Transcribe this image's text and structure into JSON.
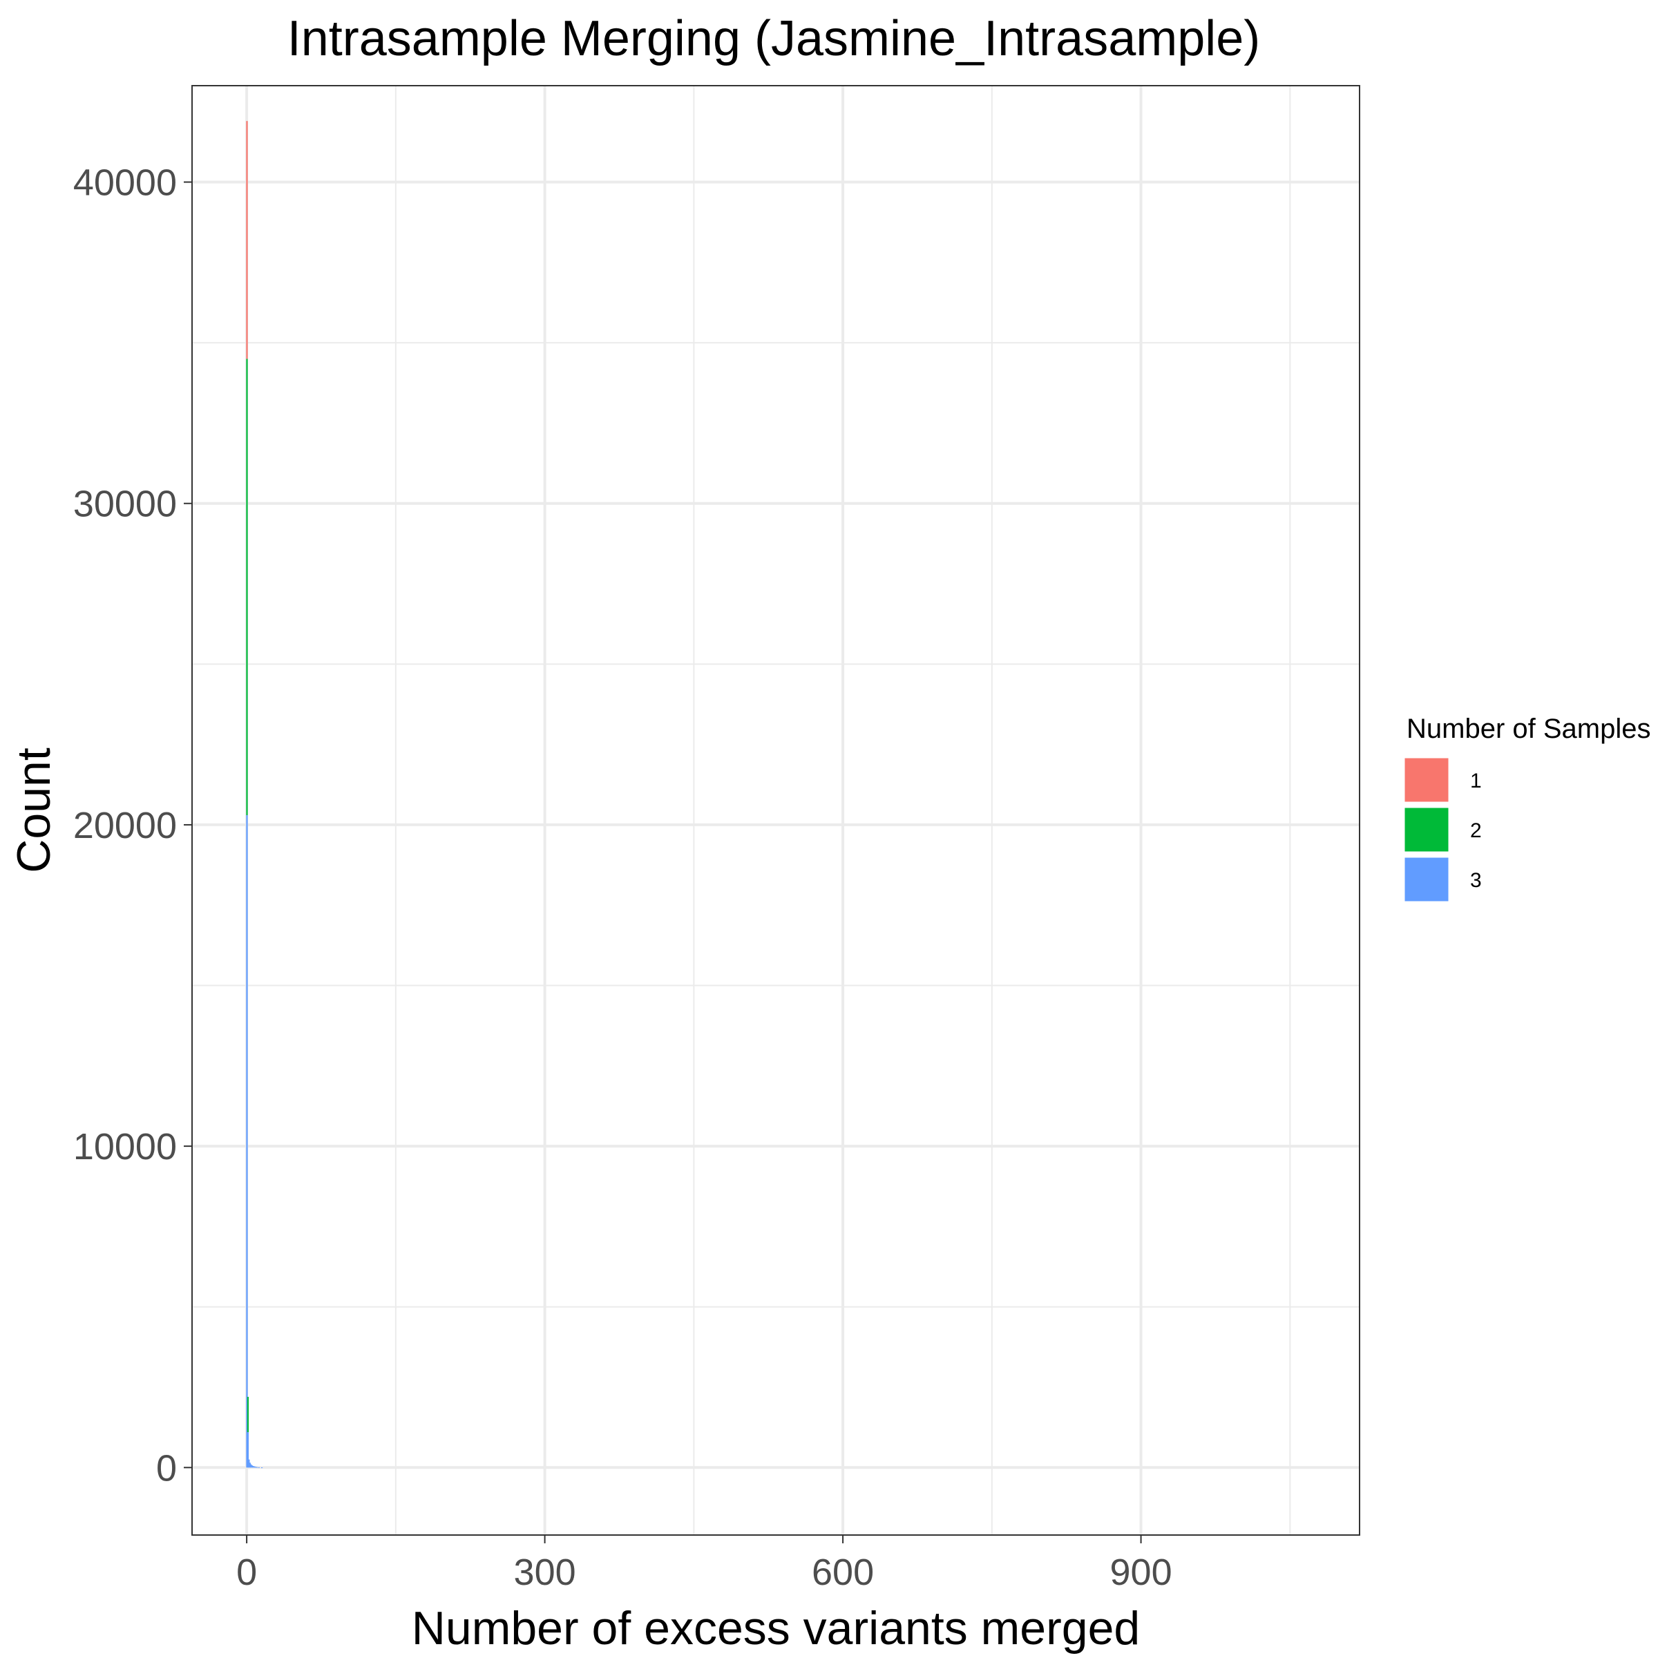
{
  "chart_data": {
    "type": "bar",
    "title": "Intrasample Merging (Jasmine_Intrasample)",
    "xlabel": "Number of excess variants merged",
    "ylabel": "Count",
    "xlim": [
      -55,
      1120
    ],
    "ylim": [
      -2100,
      43000
    ],
    "x_ticks": [
      0,
      300,
      600,
      900
    ],
    "x_ticks_minor": [
      150,
      450,
      750,
      1050
    ],
    "y_ticks": [
      0,
      10000,
      20000,
      30000,
      40000
    ],
    "y_ticks_minor": [
      5000,
      15000,
      25000,
      35000
    ],
    "stacked": true,
    "bin_width": 1,
    "grid": true,
    "legend": {
      "title": "Number of Samples",
      "position": "right"
    },
    "series": [
      {
        "name": "1",
        "color": "#F8766D",
        "x": [
          0
        ],
        "values": [
          7400
        ]
      },
      {
        "name": "2",
        "color": "#00BA38",
        "x": [
          0,
          1
        ],
        "values": [
          14200,
          1100
        ]
      },
      {
        "name": "3",
        "color": "#619CFF",
        "x": [
          0,
          1,
          2,
          3,
          4,
          5,
          6,
          7,
          8,
          9,
          10,
          12,
          15
        ],
        "values": [
          20300,
          1100,
          250,
          150,
          100,
          70,
          50,
          40,
          30,
          20,
          15,
          10,
          5
        ]
      }
    ]
  }
}
